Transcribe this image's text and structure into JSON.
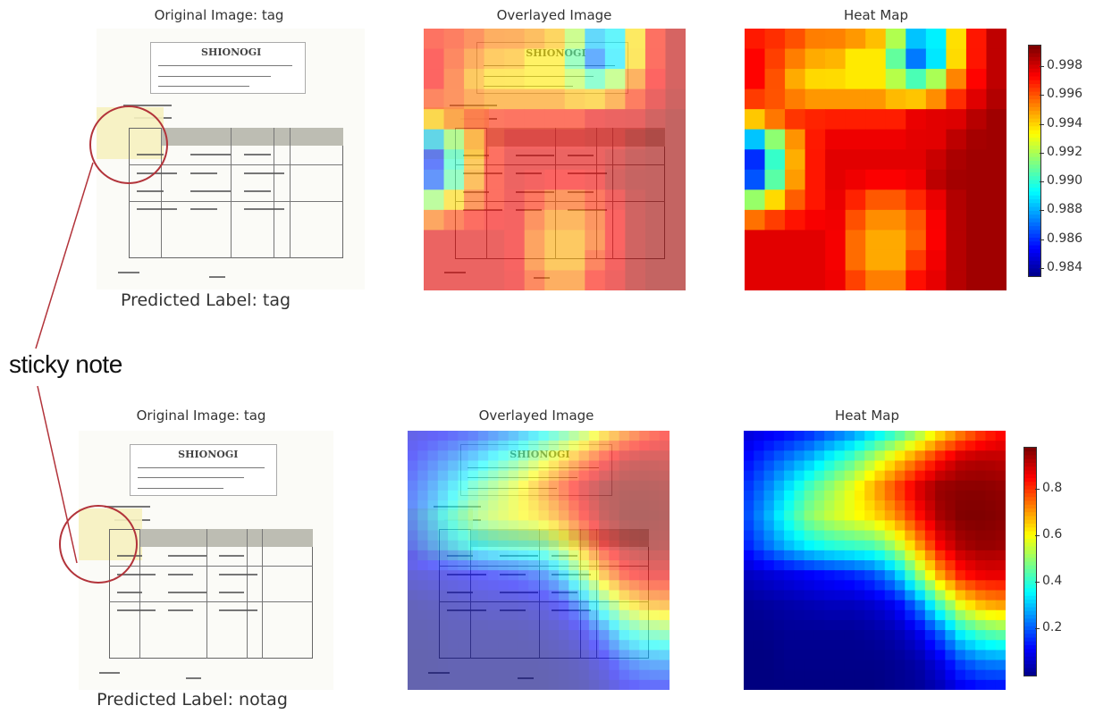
{
  "rows": [
    {
      "original_title": "Original Image: tag",
      "overlay_title": "Overlayed Image",
      "heatmap_title": "Heat Map",
      "predicted_label": "Predicted Label: tag",
      "doc_logo": "SHIONOGI",
      "colorbar_ticks": [
        "0.998",
        "0.996",
        "0.994",
        "0.992",
        "0.990",
        "0.988",
        "0.986",
        "0.984"
      ],
      "colorbar_range": [
        0.9835,
        0.9995
      ],
      "colormap": "jet"
    },
    {
      "original_title": "Original Image: tag",
      "overlay_title": "Overlayed Image",
      "heatmap_title": "Heat Map",
      "predicted_label": "Predicted Label: notag",
      "doc_logo": "SHIONOGI",
      "colorbar_ticks": [
        "0.8",
        "0.6",
        "0.4",
        "0.2"
      ],
      "colorbar_range": [
        0.0,
        0.98
      ],
      "colormap": "jet"
    }
  ],
  "annotation": {
    "label": "sticky note",
    "circle_color": "#b2333a"
  },
  "chart_data": [
    {
      "type": "heatmap",
      "title": "Heat Map",
      "colormap": "jet",
      "value_range": [
        0.984,
        0.9995
      ],
      "description_grid_rows": 10,
      "grid": [
        [
          0.997,
          0.997,
          0.997,
          0.996,
          0.996,
          0.996,
          0.995,
          0.993,
          0.989,
          0.99,
          0.996,
          0.998,
          0.999
        ],
        [
          0.998,
          0.997,
          0.996,
          0.995,
          0.995,
          0.994,
          0.994,
          0.991,
          0.987,
          0.99,
          0.996,
          0.998,
          0.999
        ],
        [
          0.998,
          0.997,
          0.995,
          0.994,
          0.994,
          0.994,
          0.994,
          0.993,
          0.992,
          0.994,
          0.997,
          0.998,
          0.999
        ],
        [
          0.995,
          0.996,
          0.997,
          0.997,
          0.997,
          0.997,
          0.997,
          0.997,
          0.998,
          0.998,
          0.998,
          0.999,
          0.999
        ],
        [
          0.986,
          0.989,
          0.994,
          0.997,
          0.998,
          0.998,
          0.998,
          0.998,
          0.998,
          0.998,
          0.999,
          0.999,
          0.999
        ],
        [
          0.984,
          0.988,
          0.994,
          0.997,
          0.998,
          0.998,
          0.998,
          0.998,
          0.998,
          0.999,
          0.999,
          0.999,
          0.999
        ],
        [
          0.992,
          0.994,
          0.996,
          0.997,
          0.998,
          0.997,
          0.996,
          0.996,
          0.997,
          0.998,
          0.999,
          0.999,
          0.999
        ],
        [
          0.998,
          0.998,
          0.998,
          0.998,
          0.998,
          0.996,
          0.995,
          0.995,
          0.996,
          0.998,
          0.999,
          0.999,
          0.999
        ],
        [
          0.998,
          0.998,
          0.998,
          0.998,
          0.998,
          0.996,
          0.995,
          0.995,
          0.997,
          0.998,
          0.999,
          0.999,
          0.999
        ],
        [
          0.998,
          0.998,
          0.998,
          0.998,
          0.998,
          0.997,
          0.996,
          0.996,
          0.998,
          0.998,
          0.999,
          0.999,
          0.999
        ]
      ]
    },
    {
      "type": "heatmap",
      "title": "Heat Map",
      "colormap": "jet",
      "value_range": [
        0.0,
        0.98
      ],
      "grid": [
        [
          0.08,
          0.1,
          0.12,
          0.15,
          0.2,
          0.25,
          0.32,
          0.4,
          0.5,
          0.62,
          0.72,
          0.8,
          0.85
        ],
        [
          0.12,
          0.18,
          0.24,
          0.3,
          0.38,
          0.45,
          0.55,
          0.65,
          0.75,
          0.85,
          0.92,
          0.93,
          0.92
        ],
        [
          0.16,
          0.24,
          0.34,
          0.44,
          0.52,
          0.6,
          0.7,
          0.8,
          0.9,
          0.96,
          0.97,
          0.97,
          0.96
        ],
        [
          0.18,
          0.28,
          0.4,
          0.5,
          0.56,
          0.6,
          0.64,
          0.72,
          0.84,
          0.94,
          0.98,
          0.98,
          0.97
        ],
        [
          0.14,
          0.22,
          0.3,
          0.36,
          0.4,
          0.42,
          0.44,
          0.54,
          0.7,
          0.86,
          0.94,
          0.96,
          0.95
        ],
        [
          0.06,
          0.08,
          0.1,
          0.12,
          0.14,
          0.16,
          0.2,
          0.3,
          0.5,
          0.7,
          0.84,
          0.88,
          0.88
        ],
        [
          0.02,
          0.03,
          0.04,
          0.05,
          0.06,
          0.06,
          0.08,
          0.12,
          0.25,
          0.45,
          0.62,
          0.7,
          0.72
        ],
        [
          0.01,
          0.01,
          0.02,
          0.02,
          0.02,
          0.02,
          0.03,
          0.05,
          0.1,
          0.22,
          0.38,
          0.45,
          0.48
        ],
        [
          0.0,
          0.0,
          0.01,
          0.01,
          0.01,
          0.01,
          0.01,
          0.02,
          0.04,
          0.1,
          0.2,
          0.25,
          0.26
        ],
        [
          0.0,
          0.0,
          0.0,
          0.0,
          0.0,
          0.0,
          0.0,
          0.01,
          0.02,
          0.05,
          0.1,
          0.12,
          0.12
        ]
      ]
    }
  ]
}
